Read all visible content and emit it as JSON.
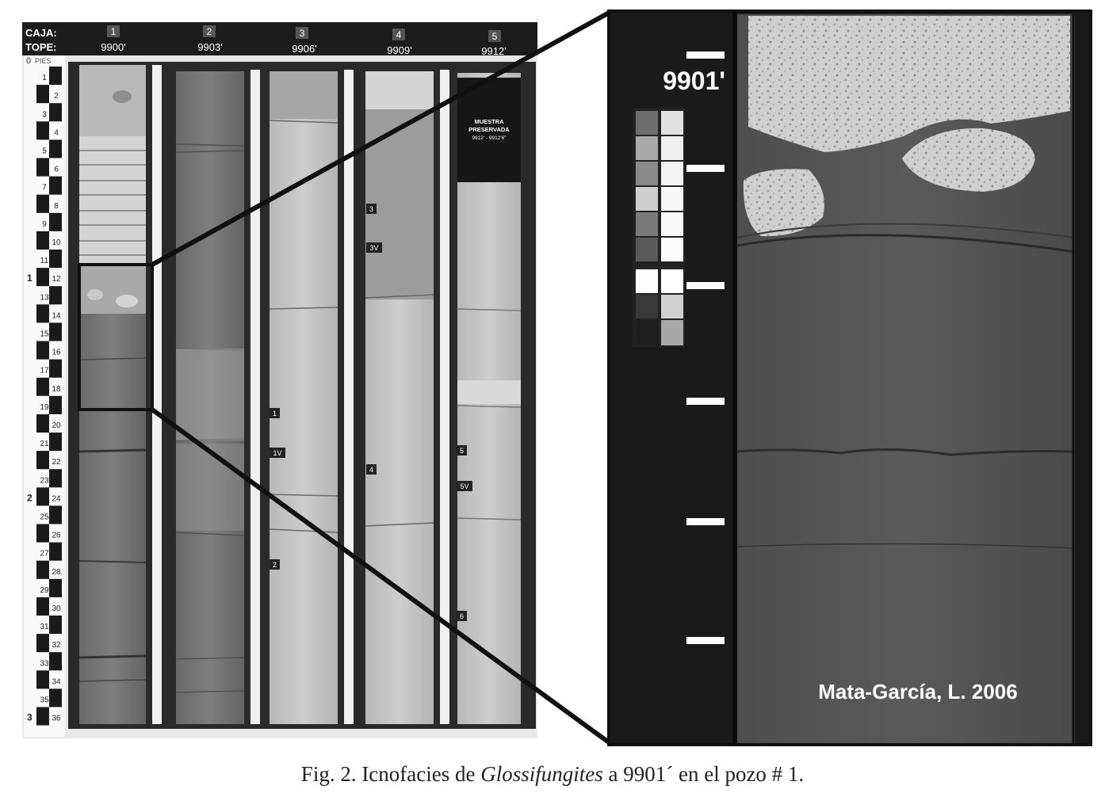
{
  "header": {
    "box_label": "CAJA:",
    "top_label": "TOPE:",
    "boxes": [
      {
        "number": "1",
        "depth": "9900'"
      },
      {
        "number": "2",
        "depth": "9903'"
      },
      {
        "number": "3",
        "depth": "9906'"
      },
      {
        "number": "4",
        "depth": "9909'"
      },
      {
        "number": "5",
        "depth": "9912'"
      }
    ]
  },
  "depth_scale": {
    "zero_label": "0",
    "unit_label": "PIES",
    "inch_ticks": [
      "1",
      "2",
      "3",
      "4",
      "5",
      "6",
      "7",
      "8",
      "9",
      "10",
      "11",
      "12",
      "13",
      "14",
      "15",
      "16",
      "17",
      "18",
      "19",
      "20",
      "21",
      "22",
      "23",
      "24",
      "25",
      "26",
      "27",
      "28",
      "29",
      "30",
      "31",
      "32",
      "33",
      "34",
      "35",
      "36"
    ],
    "foot_marks": [
      "1",
      "2",
      "3"
    ]
  },
  "preserved_sample": {
    "line1": "MUESTRA",
    "line2": "PRESERVADA",
    "line3": "9912' - 9912'6\""
  },
  "sample_tags": [
    {
      "column": 3,
      "label": "1"
    },
    {
      "column": 3,
      "label": "1V"
    },
    {
      "column": 3,
      "label": "2"
    },
    {
      "column": 4,
      "label": "3"
    },
    {
      "column": 4,
      "label": "3V"
    },
    {
      "column": 4,
      "label": "4"
    },
    {
      "column": 5,
      "label": "5"
    },
    {
      "column": 5,
      "label": "5V"
    },
    {
      "column": 5,
      "label": "6"
    }
  ],
  "zoom_panel": {
    "depth_label": "9901'",
    "credit": "Mata-García, L. 2006"
  },
  "caption": {
    "prefix": "Fig. 2. Icnofacies de ",
    "italic": "Glossifungites",
    "suffix": " a 9901´ en el pozo # 1."
  }
}
